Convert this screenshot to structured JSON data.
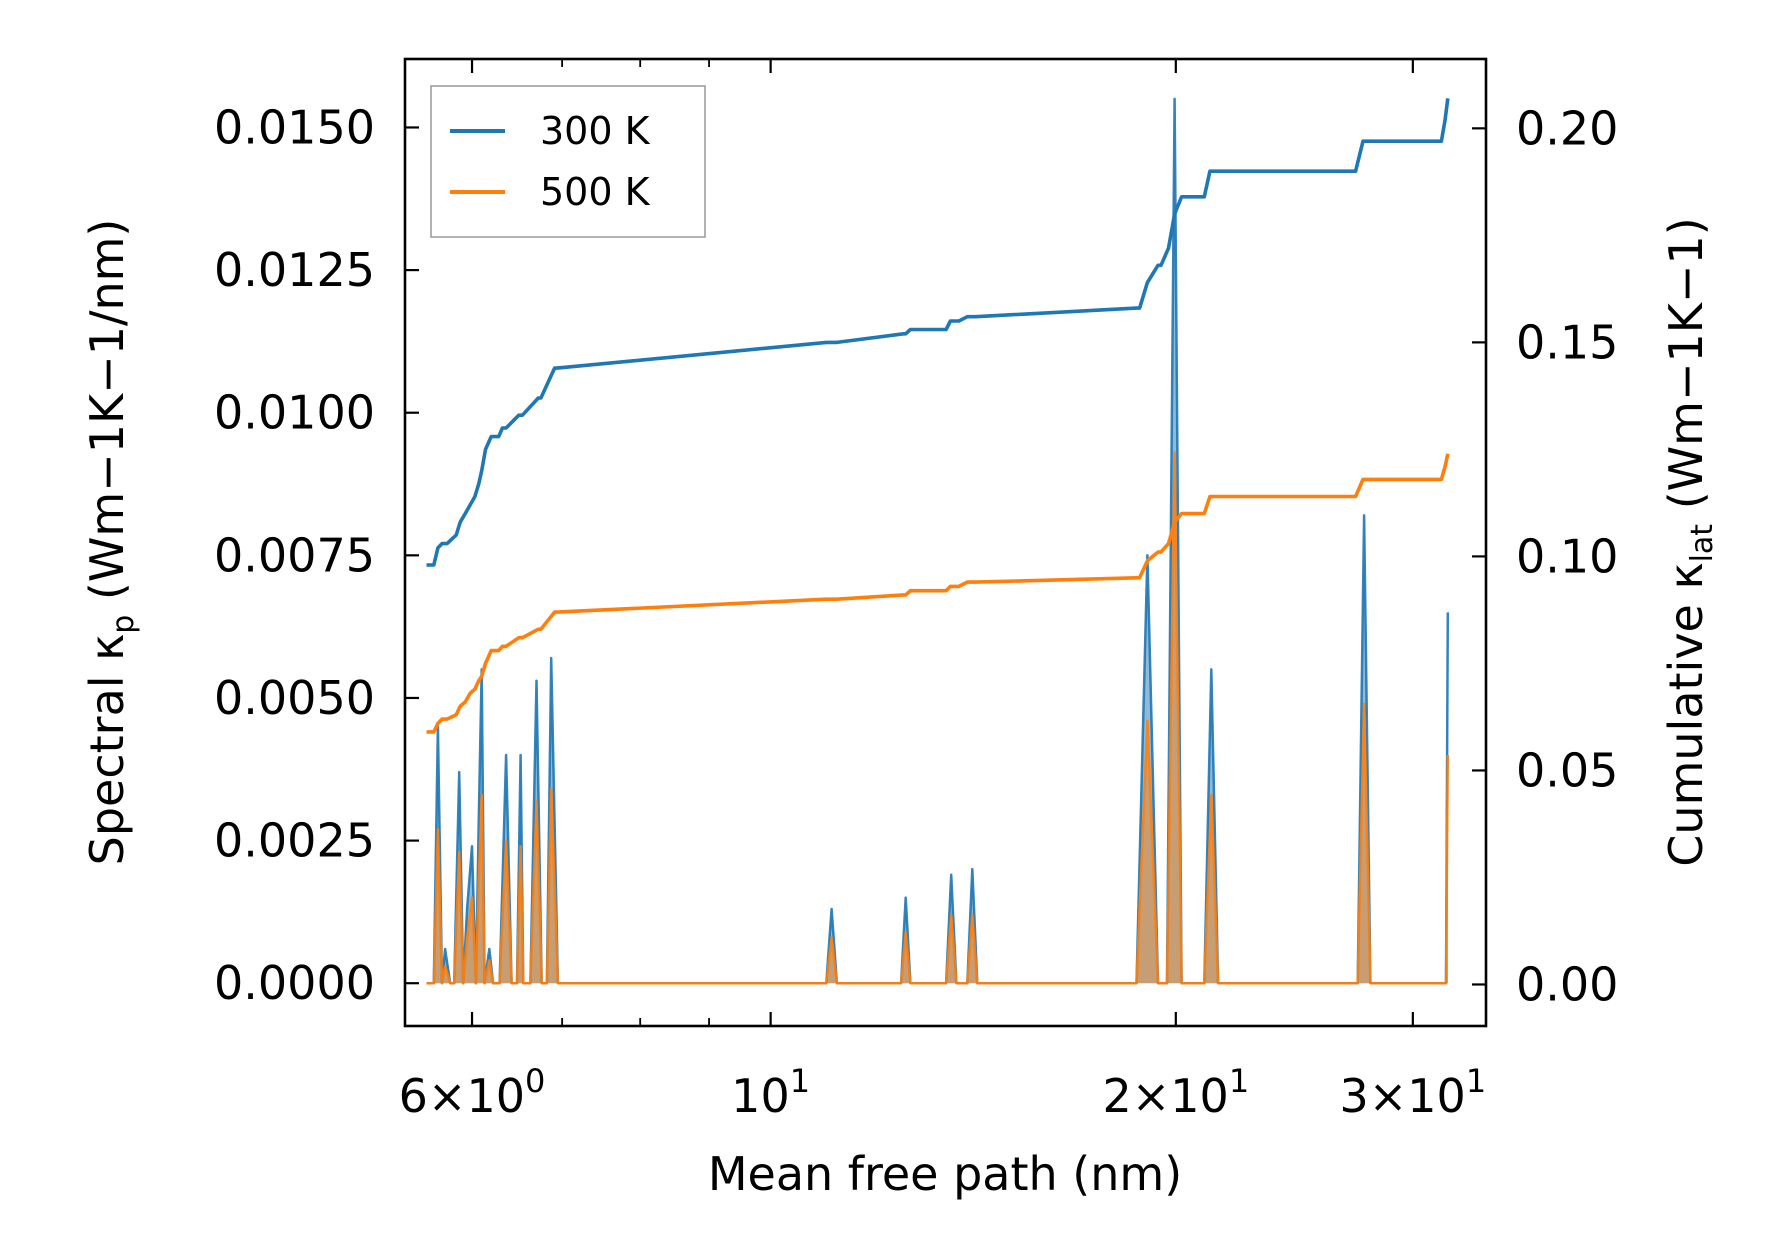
{
  "chart_data": {
    "type": "line",
    "x_scale": "log",
    "xlim": [
      5.35,
      34.0
    ],
    "xlabel": "Mean free path (nm)",
    "x_ticks": [
      {
        "value": 6,
        "mantissa": "6",
        "exponent": "0"
      },
      {
        "value": 10,
        "mantissa": "",
        "exponent": "1"
      },
      {
        "value": 20,
        "mantissa": "2",
        "exponent": "1"
      },
      {
        "value": 30,
        "mantissa": "3",
        "exponent": "1"
      }
    ],
    "left_axis": {
      "label_main": "Spectral κ",
      "label_sub": "p",
      "label_units": "(Wm−1K−1/nm)",
      "ylim": [
        -0.00075,
        0.0162
      ],
      "ticks": [
        "0.0000",
        "0.0025",
        "0.0050",
        "0.0075",
        "0.0100",
        "0.0125",
        "0.0150"
      ]
    },
    "right_axis": {
      "label_main": "Cumulative κ",
      "label_sub": "lat",
      "label_units": "(Wm−1K−1)",
      "ylim": [
        -0.0097,
        0.2162
      ],
      "ticks": [
        "0.00",
        "0.05",
        "0.10",
        "0.15",
        "0.20"
      ]
    },
    "legend": {
      "location": "upper-left",
      "entries": [
        {
          "label": "300 K",
          "color": "#1f77b4"
        },
        {
          "label": "500 K",
          "color": "#ff7f0e"
        }
      ]
    },
    "spectral_series": [
      {
        "name": "300 K",
        "color": "#1f77b4",
        "x": [
          5.55,
          5.62,
          5.66,
          5.7,
          5.73,
          5.78,
          5.82,
          5.87,
          5.91,
          5.95,
          6.0,
          6.04,
          6.07,
          6.1,
          6.13,
          6.18,
          6.22,
          6.29,
          6.36,
          6.42,
          6.46,
          6.48,
          6.52,
          6.55,
          6.63,
          6.7,
          6.76,
          6.82,
          6.87,
          6.95,
          7.0,
          7.05,
          7.2,
          7.3,
          7.4,
          7.5,
          7.75,
          7.85,
          7.95,
          8.1,
          8.25,
          8.35,
          11.0,
          11.1,
          11.2,
          12.5,
          12.6,
          12.7,
          13.5,
          13.62,
          13.74,
          14.0,
          14.12,
          14.24,
          18.7,
          19.05,
          19.4,
          19.7,
          19.96,
          20.2,
          21.0,
          21.25,
          21.5,
          27.3,
          27.6,
          27.9,
          31.6,
          31.75,
          31.85
        ],
        "y": [
          0.0,
          0.0,
          0.0045,
          0.0,
          0.0006,
          0.0,
          0.0,
          0.0037,
          0.0,
          0.0013,
          0.0024,
          0.0,
          0.0029,
          0.0055,
          0.0,
          0.0006,
          0.0,
          0.0,
          0.004,
          0.0,
          0.0,
          0.0,
          0.004,
          0.0,
          0.0,
          0.0053,
          0.0,
          0.0,
          0.0057,
          0.0,
          0.0,
          0.0,
          0.0,
          0.0,
          0.0,
          0.0,
          0.0,
          0.0,
          0.0,
          0.0,
          0.0,
          0.0,
          0.0,
          0.0013,
          0.0,
          0.0,
          0.0015,
          0.0,
          0.0,
          0.0019,
          0.0,
          0.0,
          0.002,
          0.0,
          0.0,
          0.0075,
          0.0,
          0.0,
          0.0155,
          0.0,
          0.0,
          0.0055,
          0.0,
          0.0,
          0.0082,
          0.0,
          0.0,
          0.0,
          0.0065
        ]
      },
      {
        "name": "500 K",
        "color": "#ff7f0e",
        "x": [
          5.55,
          5.62,
          5.66,
          5.7,
          5.73,
          5.78,
          5.82,
          5.87,
          5.91,
          5.95,
          6.0,
          6.04,
          6.07,
          6.1,
          6.13,
          6.18,
          6.22,
          6.29,
          6.36,
          6.42,
          6.46,
          6.48,
          6.52,
          6.55,
          6.63,
          6.7,
          6.76,
          6.82,
          6.87,
          6.95,
          11.0,
          11.1,
          11.2,
          12.5,
          12.6,
          12.7,
          13.5,
          13.62,
          13.74,
          14.0,
          14.12,
          14.24,
          18.7,
          19.05,
          19.4,
          19.7,
          19.96,
          20.2,
          21.0,
          21.25,
          21.5,
          27.3,
          27.6,
          27.9,
          31.6,
          31.75,
          31.85
        ],
        "y": [
          0.0,
          0.0,
          0.0027,
          0.0,
          0.0003,
          0.0,
          0.0,
          0.0023,
          0.0,
          0.0008,
          0.0015,
          0.0,
          0.0018,
          0.0033,
          0.0,
          0.0004,
          0.0,
          0.0,
          0.0025,
          0.0,
          0.0,
          0.0,
          0.0024,
          0.0,
          0.0,
          0.0032,
          0.0,
          0.0,
          0.0034,
          0.0,
          0.0,
          0.0008,
          0.0,
          0.0,
          0.0009,
          0.0,
          0.0,
          0.0012,
          0.0,
          0.0,
          0.0012,
          0.0,
          0.0,
          0.0046,
          0.0,
          0.0,
          0.0093,
          0.0,
          0.0,
          0.0033,
          0.0,
          0.0,
          0.0049,
          0.0,
          0.0,
          0.0,
          0.004
        ]
      }
    ],
    "cumulative_series": [
      {
        "name": "300 K",
        "color": "#1f77b4",
        "x": [
          5.55,
          5.62,
          5.66,
          5.7,
          5.75,
          5.84,
          5.88,
          5.93,
          5.98,
          6.03,
          6.07,
          6.1,
          6.14,
          6.2,
          6.28,
          6.32,
          6.36,
          6.5,
          6.54,
          6.72,
          6.75,
          6.91,
          6.94,
          11.0,
          11.2,
          12.55,
          12.6,
          12.7,
          13.5,
          13.6,
          13.8,
          14.0,
          14.2,
          18.7,
          18.8,
          19.05,
          19.4,
          19.5,
          19.75,
          19.96,
          20.2,
          21.0,
          21.2,
          27.2,
          27.55,
          31.5,
          31.7,
          31.85
        ],
        "y": [
          0.098,
          0.098,
          0.102,
          0.103,
          0.103,
          0.105,
          0.108,
          0.11,
          0.112,
          0.114,
          0.117,
          0.12,
          0.125,
          0.128,
          0.128,
          0.13,
          0.13,
          0.133,
          0.133,
          0.137,
          0.137,
          0.144,
          0.144,
          0.15,
          0.15,
          0.152,
          0.152,
          0.153,
          0.153,
          0.155,
          0.155,
          0.156,
          0.156,
          0.158,
          0.158,
          0.164,
          0.168,
          0.168,
          0.172,
          0.18,
          0.184,
          0.184,
          0.19,
          0.19,
          0.197,
          0.197,
          0.202,
          0.207
        ]
      },
      {
        "name": "500 K",
        "color": "#ff7f0e",
        "x": [
          5.55,
          5.62,
          5.66,
          5.7,
          5.75,
          5.84,
          5.88,
          5.93,
          5.98,
          6.03,
          6.07,
          6.1,
          6.14,
          6.2,
          6.28,
          6.32,
          6.36,
          6.5,
          6.54,
          6.72,
          6.75,
          6.91,
          6.94,
          11.0,
          11.2,
          12.55,
          12.6,
          12.7,
          13.5,
          13.6,
          13.8,
          14.0,
          14.2,
          18.7,
          18.8,
          19.05,
          19.4,
          19.5,
          19.75,
          19.96,
          20.2,
          21.0,
          21.2,
          27.2,
          27.55,
          31.5,
          31.7,
          31.85
        ],
        "y": [
          0.059,
          0.059,
          0.061,
          0.062,
          0.062,
          0.063,
          0.065,
          0.066,
          0.068,
          0.069,
          0.071,
          0.072,
          0.075,
          0.078,
          0.078,
          0.079,
          0.079,
          0.081,
          0.081,
          0.083,
          0.083,
          0.087,
          0.087,
          0.09,
          0.09,
          0.091,
          0.091,
          0.092,
          0.092,
          0.093,
          0.093,
          0.094,
          0.094,
          0.095,
          0.095,
          0.099,
          0.101,
          0.101,
          0.103,
          0.108,
          0.11,
          0.11,
          0.114,
          0.114,
          0.118,
          0.118,
          0.121,
          0.124
        ]
      }
    ]
  }
}
